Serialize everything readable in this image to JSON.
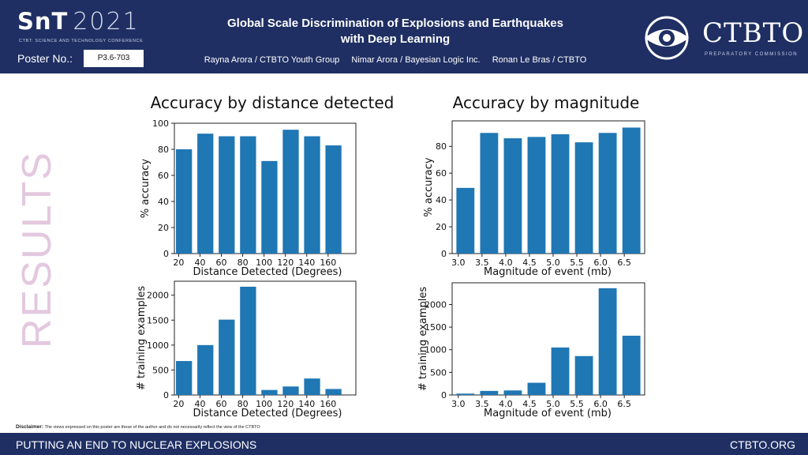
{
  "header": {
    "snt": "SnT",
    "year": "2021",
    "conference": "CTBT: SCIENCE AND TECHNOLOGY CONFERENCE",
    "poster_label": "Poster No.:",
    "poster_number": "P3.6-703",
    "title_line1": "Global Scale Discrimination of Explosions and Earthquakes",
    "title_line2": "with Deep Learning",
    "authors": [
      "Rayna Arora / CTBTO Youth Group",
      "Nimar Arora / Bayesian Logic Inc.",
      "Ronan Le Bras / CTBTO"
    ],
    "org": "CTBTO",
    "org_sub": "PREPARATORY COMMISSION"
  },
  "section_label": "RESULTS",
  "disclaimer": {
    "label": "Disclaimer:",
    "text": "The views expressed on this poster are those of the author and do not necessarily reflect the view of the CTBTO"
  },
  "footer": {
    "left": "PUTTING AN END TO NUCLEAR EXPLOSIONS",
    "right": "CTBTO.ORG"
  },
  "colors": {
    "navy": "#1f2f63",
    "bar": "#1f77b4",
    "results": "#e3c8df"
  },
  "chart_data": [
    {
      "id": "acc-dist",
      "type": "bar",
      "title": "Accuracy by distance detected",
      "xlabel": "Distance Detected (Degrees)",
      "ylabel": "% accuracy",
      "x": [
        20,
        40,
        60,
        80,
        100,
        120,
        140,
        160
      ],
      "x_tick_labels": [
        "20",
        "40",
        "60",
        "80",
        "100",
        "120",
        "140",
        "160"
      ],
      "bar_centers": [
        25,
        45,
        65,
        85,
        105,
        125,
        145,
        165
      ],
      "bar_width": 15,
      "values": [
        80,
        92,
        90,
        90,
        71,
        95,
        90,
        83
      ],
      "xlim": [
        16,
        186
      ],
      "ylim": [
        0,
        100
      ],
      "yticks": [
        0,
        20,
        40,
        60,
        80,
        100
      ]
    },
    {
      "id": "acc-mag",
      "type": "bar",
      "title": "Accuracy by magnitude",
      "xlabel": "Magnitude of event (mb)",
      "ylabel": "% accuracy",
      "x": [
        3.0,
        3.5,
        4.0,
        4.5,
        5.0,
        5.5,
        6.0,
        6.5
      ],
      "x_tick_labels": [
        "3.0",
        "3.5",
        "4.0",
        "4.5",
        "5.0",
        "5.5",
        "6.0",
        "6.5"
      ],
      "bar_centers": [
        3.15,
        3.65,
        4.15,
        4.65,
        5.15,
        5.65,
        6.15,
        6.65
      ],
      "bar_width": 0.38,
      "values": [
        49,
        90,
        86,
        87,
        89,
        83,
        90,
        94
      ],
      "xlim": [
        2.87,
        6.93
      ],
      "ylim": [
        0,
        99
      ],
      "yticks": [
        0,
        20,
        40,
        60,
        80
      ]
    },
    {
      "id": "train-dist",
      "type": "bar",
      "title": "",
      "xlabel": "Distance Detected (Degrees)",
      "ylabel": "# training examples",
      "x": [
        20,
        40,
        60,
        80,
        100,
        120,
        140,
        160
      ],
      "x_tick_labels": [
        "20",
        "40",
        "60",
        "80",
        "100",
        "120",
        "140",
        "160"
      ],
      "bar_centers": [
        25,
        45,
        65,
        85,
        105,
        125,
        145,
        165
      ],
      "bar_width": 15,
      "values": [
        680,
        1000,
        1510,
        2170,
        100,
        170,
        330,
        120
      ],
      "xlim": [
        16,
        186
      ],
      "ylim": [
        0,
        2280
      ],
      "yticks": [
        0,
        500,
        1000,
        1500,
        2000
      ]
    },
    {
      "id": "train-mag",
      "type": "bar",
      "title": "",
      "xlabel": "Magnitude of event (mb)",
      "ylabel": "# training examples",
      "x": [
        3.0,
        3.5,
        4.0,
        4.5,
        5.0,
        5.5,
        6.0,
        6.5
      ],
      "x_tick_labels": [
        "3.0",
        "3.5",
        "4.0",
        "4.5",
        "5.0",
        "5.5",
        "6.0",
        "6.5"
      ],
      "bar_centers": [
        3.15,
        3.65,
        4.15,
        4.65,
        5.15,
        5.65,
        6.15,
        6.65
      ],
      "bar_width": 0.38,
      "values": [
        30,
        90,
        100,
        270,
        1050,
        860,
        2360,
        1310
      ],
      "xlim": [
        2.87,
        6.93
      ],
      "ylim": [
        0,
        2480
      ],
      "yticks": [
        0,
        500,
        1000,
        1500,
        2000
      ]
    }
  ]
}
